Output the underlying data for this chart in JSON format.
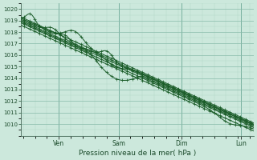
{
  "xlabel": "Pression niveau de la mer( hPa )",
  "ylim": [
    1009.0,
    1020.5
  ],
  "yticks": [
    1010,
    1011,
    1012,
    1013,
    1014,
    1015,
    1016,
    1017,
    1018,
    1019,
    1020
  ],
  "bg_color": "#cce8dc",
  "grid_major_color": "#88bbaa",
  "grid_minor_color": "#aad4c4",
  "line_color": "#1a5c28",
  "n_steps": 300,
  "xlim": [
    0,
    3.7
  ],
  "ven_x": 0.6,
  "sam_x": 1.55,
  "dim_x": 2.55,
  "lun_x": 3.5
}
